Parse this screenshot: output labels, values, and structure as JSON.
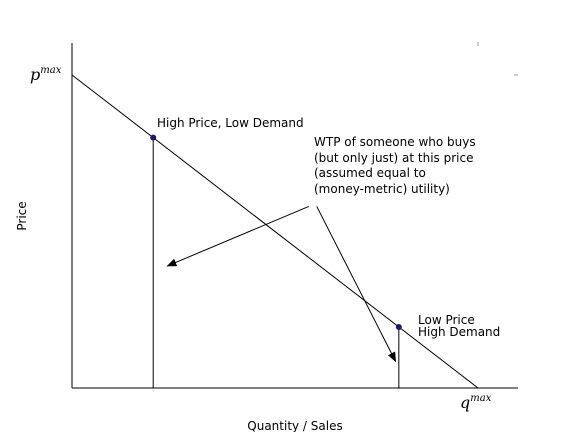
{
  "chart_data": {
    "type": "line",
    "title": "",
    "xlabel": "Quantity / Sales",
    "ylabel": "Price",
    "xlim": [
      0,
      1.1
    ],
    "ylim": [
      0,
      1.0
    ],
    "grid": false,
    "demand_line": {
      "x": [
        0,
        1.0
      ],
      "y": [
        1.0,
        0
      ]
    },
    "points": [
      {
        "x": 0.2,
        "y": 0.8
      },
      {
        "x": 0.805,
        "y": 0.195
      }
    ],
    "annotations": {
      "high_price": "High Price, Low Demand",
      "low_price_line1": "Low Price",
      "low_price_line2": "High Demand",
      "wtp_lines": [
        "WTP of someone who buys",
        "(but only just) at this price",
        "(assumed equal to",
        "(money-metric) utility)"
      ]
    },
    "axis_marks": {
      "pmax_base": "p",
      "pmax_sup": "max",
      "qmax_base": "q",
      "qmax_sup": "max"
    },
    "arrow_tail": {
      "x": 0.593,
      "y": 0.58
    },
    "arrow_heads": [
      {
        "x": 0.235,
        "y": 0.39
      },
      {
        "x": 0.797,
        "y": 0.085
      }
    ]
  }
}
